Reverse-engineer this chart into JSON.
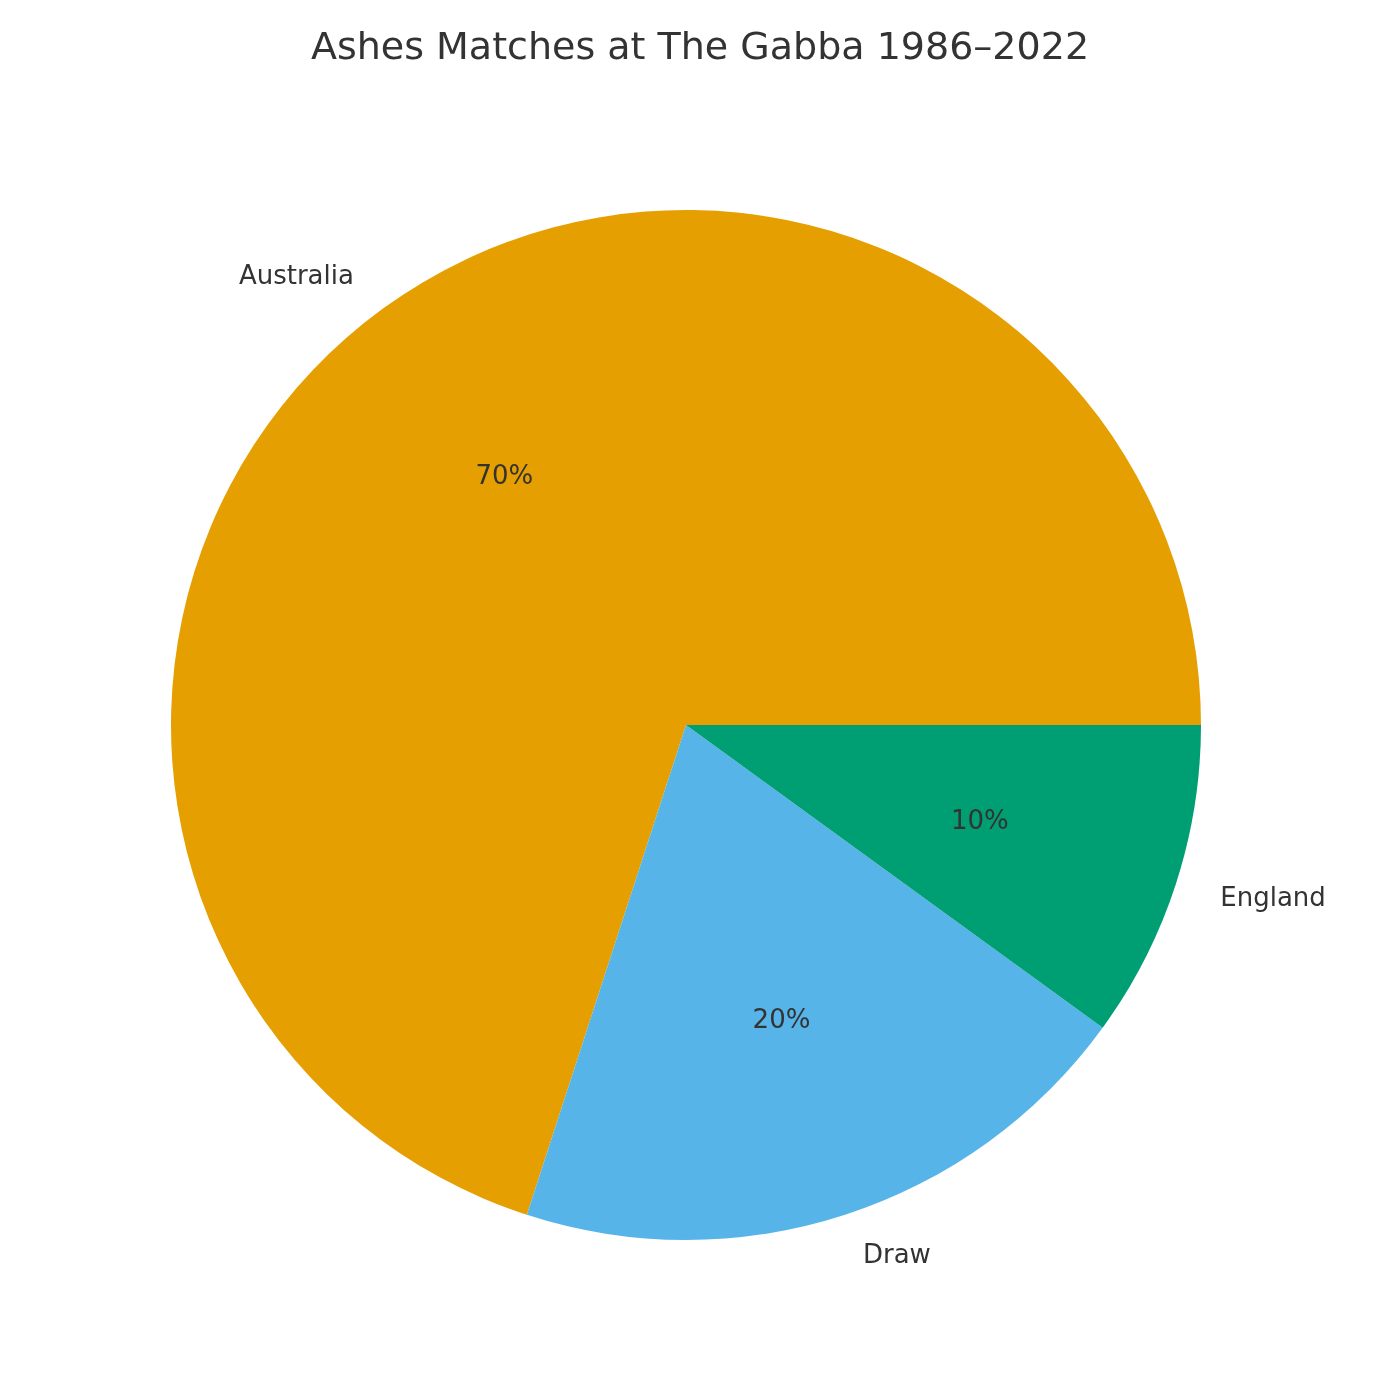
{
  "chart_data": {
    "type": "pie",
    "title": "Ashes Matches at The Gabba 1986–2022",
    "categories": [
      "Australia",
      "Draw",
      "England"
    ],
    "values": [
      70,
      20,
      10
    ],
    "colors": [
      "#e69f00",
      "#56b4e9",
      "#009e73"
    ],
    "value_labels": [
      "70%",
      "20%",
      "10%"
    ],
    "legend": false
  }
}
